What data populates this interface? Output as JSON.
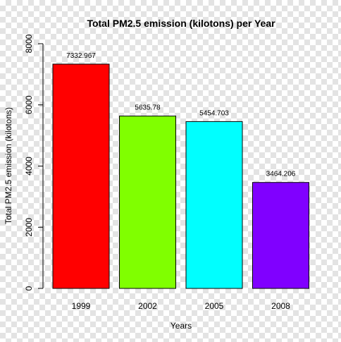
{
  "chart_data": {
    "type": "bar",
    "title": "Total PM2.5 emission (kilotons) per Year",
    "xlabel": "Years",
    "ylabel": "Total PM2.5 emission (kilotons)",
    "categories": [
      "1999",
      "2002",
      "2005",
      "2008"
    ],
    "values": [
      7332.967,
      5635.78,
      5454.703,
      3464.206
    ],
    "data_labels": [
      "7332.967",
      "5635.78",
      "5454.703",
      "3464.206"
    ],
    "colors": [
      "#ff0000",
      "#80ff00",
      "#00ffff",
      "#8000ff"
    ],
    "ylim": [
      0,
      8000
    ],
    "yticks": [
      0,
      2000,
      4000,
      6000,
      8000
    ],
    "ytick_labels": [
      "0",
      "2000",
      "4000",
      "6000",
      "8000"
    ],
    "grid": false,
    "legend": "none"
  }
}
